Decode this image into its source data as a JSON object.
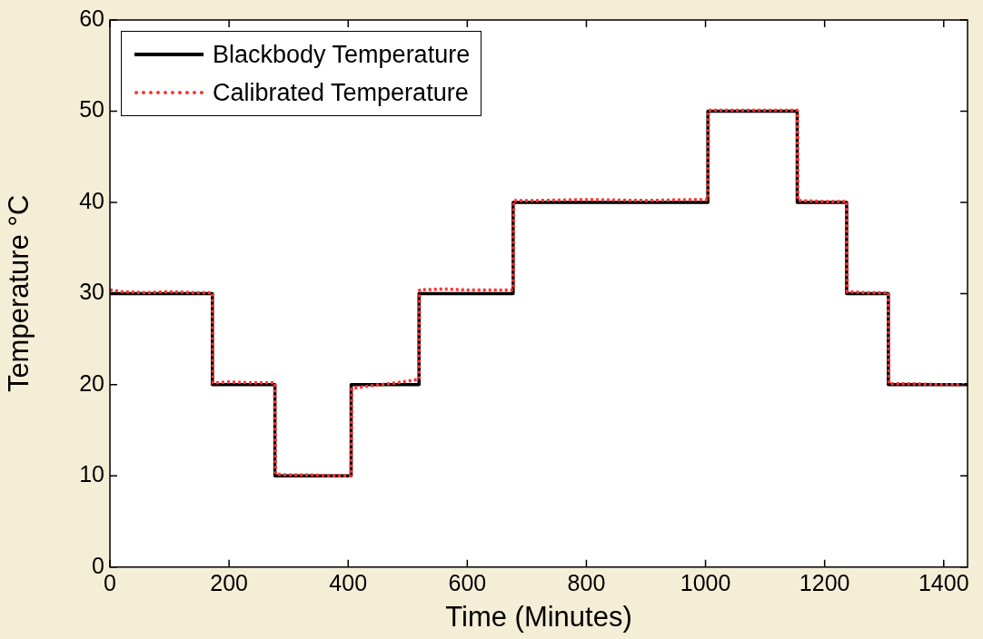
{
  "chart_data": {
    "type": "line",
    "xlabel": "Time (Minutes)",
    "ylabel": "Temperature °C",
    "xlim": [
      0,
      1440
    ],
    "xticks": [
      0,
      200,
      400,
      600,
      800,
      1000,
      1200,
      1400
    ],
    "ylim": [
      0,
      60
    ],
    "yticks": [
      0,
      10,
      20,
      30,
      40,
      50,
      60
    ],
    "grid": false,
    "legend": "top left",
    "marker": "none",
    "series": [
      {
        "name": "Blackbody Temperature",
        "color": "#000000",
        "line_style": "solid",
        "x": [
          0,
          172,
          172,
          277,
          277,
          405,
          405,
          519,
          519,
          677,
          677,
          1004,
          1004,
          1154,
          1154,
          1237,
          1237,
          1307,
          1307,
          1440
        ],
        "values": [
          30,
          30,
          20,
          20,
          10,
          10,
          20,
          20,
          30,
          30,
          40,
          40,
          50,
          50,
          40,
          40,
          30,
          30,
          20,
          20
        ]
      },
      {
        "name": "Calibrated Temperature",
        "color": "#ff3333",
        "line_style": "dotted",
        "x": [
          0,
          20,
          60,
          100,
          140,
          172,
          173,
          200,
          240,
          277,
          278,
          300,
          340,
          380,
          405,
          406,
          440,
          480,
          519,
          520,
          560,
          600,
          640,
          677,
          678,
          720,
          800,
          900,
          980,
          1004,
          1005,
          1060,
          1120,
          1154,
          1155,
          1200,
          1237,
          1238,
          1270,
          1307,
          1308,
          1350,
          1400,
          1440
        ],
        "values": [
          30.4,
          30.2,
          30.1,
          30.2,
          30.1,
          30.1,
          20.2,
          20.3,
          20.2,
          20.2,
          10.2,
          10.1,
          10.1,
          10.0,
          10.0,
          19.6,
          19.9,
          20.2,
          20.6,
          30.4,
          30.5,
          30.4,
          30.4,
          30.4,
          40.2,
          40.2,
          40.3,
          40.2,
          40.3,
          40.3,
          50.1,
          50.1,
          50.1,
          50.1,
          40.2,
          40.1,
          40.1,
          30.2,
          30.1,
          30.1,
          20.1,
          20.1,
          20.0,
          20.0
        ]
      }
    ]
  }
}
